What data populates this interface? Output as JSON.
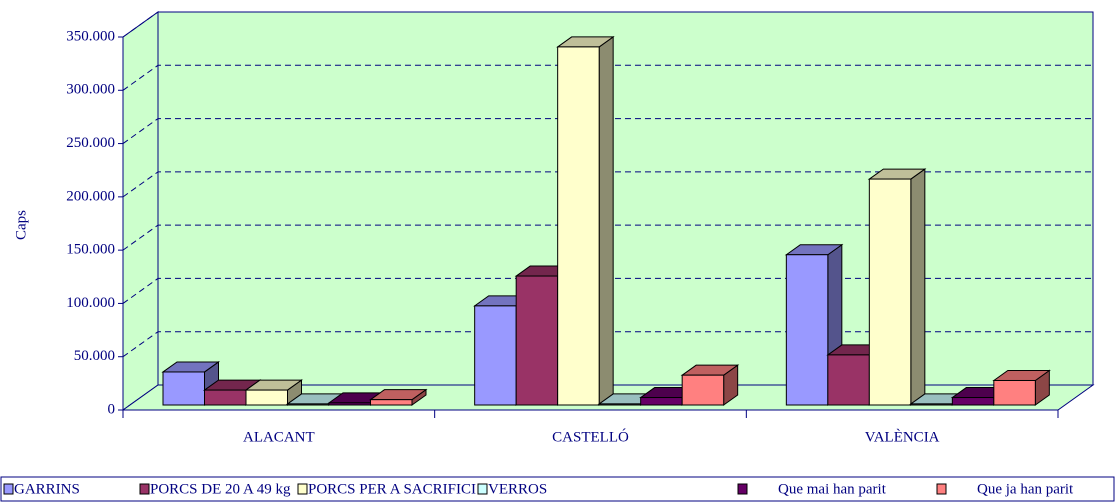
{
  "chart_data": {
    "type": "bar3d",
    "ylabel": "Caps",
    "categories": [
      "ALACANT",
      "CASTELLÓ",
      "VALÈNCIA"
    ],
    "series": [
      {
        "name": "GARRINS",
        "color": "#9999ff",
        "values": [
          31000,
          93000,
          141000
        ]
      },
      {
        "name": "PORCS DE 20 A 49 kg",
        "color": "#993366",
        "values": [
          14000,
          121000,
          47000
        ]
      },
      {
        "name": "PORCS PER A SACRIFICI",
        "color": "#ffffcc",
        "values": [
          14000,
          336000,
          212000
        ]
      },
      {
        "name": "VERROS",
        "color": "#ccffff",
        "values": [
          1000,
          1000,
          1000
        ]
      },
      {
        "name": "Que mai han parit",
        "color": "#660066",
        "values": [
          2000,
          7000,
          7000
        ]
      },
      {
        "name": "Que ja han parit",
        "color": "#ff8080",
        "values": [
          5000,
          28000,
          23000
        ]
      }
    ],
    "ylim": [
      0,
      350000
    ],
    "yticks": [
      0,
      {
        "value": 50000,
        "label": "50.000"
      },
      {
        "value": 100000,
        "label": "100.000"
      },
      {
        "value": 150000,
        "label": "150.000"
      },
      {
        "value": 200000,
        "label": "200.000"
      },
      {
        "value": 250000,
        "label": "250.000"
      },
      {
        "value": 300000,
        "label": "300.000"
      },
      {
        "value": 350000,
        "label": "350.000"
      }
    ],
    "grid": true,
    "legend": "bottom"
  }
}
